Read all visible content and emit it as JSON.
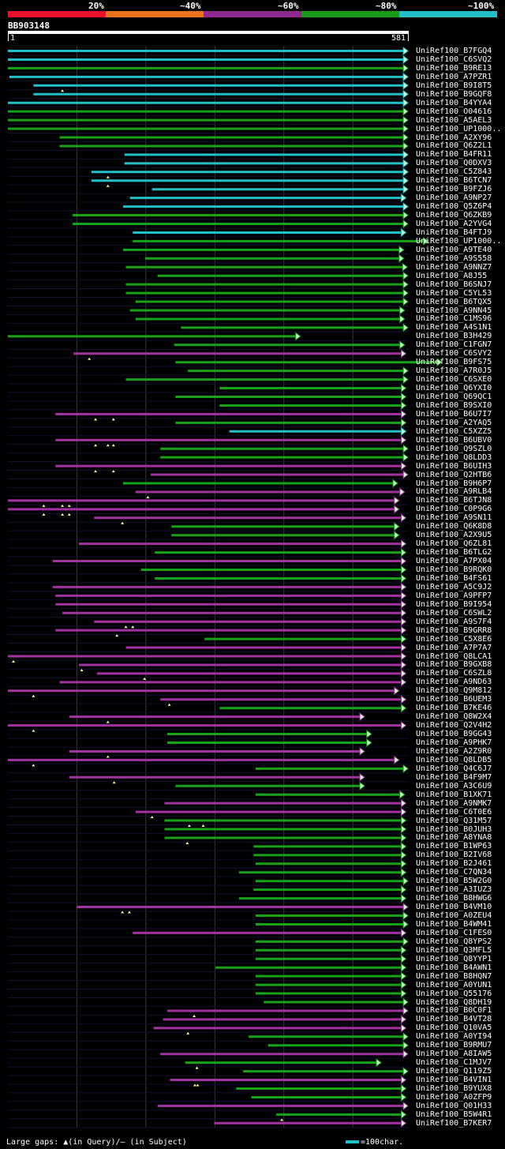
{
  "legend": {
    "segments": [
      {
        "color": "#e8102e"
      },
      {
        "color": "#e9721c"
      },
      {
        "color": "#8e2a8e"
      },
      {
        "color": "#199b19"
      },
      {
        "color": "#23bfc8"
      }
    ],
    "labels": [
      "20%",
      "~40%",
      "~60%",
      "~80%",
      "~100%"
    ]
  },
  "query": {
    "id": "BB903148",
    "start": "1",
    "end": "581",
    "length": 581
  },
  "colors": {
    "cyan": "#23bfc8",
    "green": "#17a317",
    "purple": "#a232a2",
    "grid": "#3a3a3a",
    "head_fill": "#c9ffc9",
    "mark": "#ffff9e"
  },
  "footer": {
    "left": "Large gaps: ▲(in Query)/– (in Subject)",
    "right": "=100char."
  },
  "hits": [
    {
      "name": "UniRef100_B7FGQ4",
      "c": "c",
      "s": 1,
      "e": 581,
      "m": []
    },
    {
      "name": "UniRef100_C6SVQ2",
      "c": "c",
      "s": 1,
      "e": 581,
      "m": []
    },
    {
      "name": "UniRef100_B9RE13",
      "c": "g",
      "s": 1,
      "e": 581,
      "m": []
    },
    {
      "name": "UniRef100_A7PZR1",
      "c": "c",
      "s": 3,
      "e": 581,
      "m": []
    },
    {
      "name": "UniRef100_B9I8T5",
      "c": "c",
      "s": 38,
      "e": 581,
      "m": [
        80
      ]
    },
    {
      "name": "UniRef100_B9GQF8",
      "c": "c",
      "s": 38,
      "e": 581,
      "m": []
    },
    {
      "name": "UniRef100_B4YYA4",
      "c": "c",
      "s": 1,
      "e": 581,
      "m": []
    },
    {
      "name": "UniRef100_O04616",
      "c": "g",
      "s": 1,
      "e": 581,
      "m": []
    },
    {
      "name": "UniRef100_A5AEL3",
      "c": "g",
      "s": 1,
      "e": 581,
      "m": []
    },
    {
      "name": "UniRef100_UP1000..",
      "c": "g",
      "s": 1,
      "e": 581,
      "m": []
    },
    {
      "name": "UniRef100_A2XY96",
      "c": "g",
      "s": 76,
      "e": 581,
      "m": []
    },
    {
      "name": "UniRef100_Q6Z2L1",
      "c": "g",
      "s": 76,
      "e": 581,
      "m": []
    },
    {
      "name": "UniRef100_B4FR11",
      "c": "c",
      "s": 170,
      "e": 581,
      "m": []
    },
    {
      "name": "UniRef100_Q0DXV3",
      "c": "c",
      "s": 170,
      "e": 581,
      "m": []
    },
    {
      "name": "UniRef100_C5Z843",
      "c": "c",
      "s": 122,
      "e": 581,
      "m": [
        146
      ]
    },
    {
      "name": "UniRef100_B6TCN7",
      "c": "c",
      "s": 122,
      "e": 581,
      "m": [
        146
      ]
    },
    {
      "name": "UniRef100_B9FZJ6",
      "c": "c",
      "s": 210,
      "e": 581,
      "m": []
    },
    {
      "name": "UniRef100_A9NP27",
      "c": "c",
      "s": 178,
      "e": 578,
      "m": []
    },
    {
      "name": "UniRef100_Q5Z6P4",
      "c": "c",
      "s": 168,
      "e": 581,
      "m": []
    },
    {
      "name": "UniRef100_Q6ZKB9",
      "c": "g",
      "s": 95,
      "e": 581,
      "m": []
    },
    {
      "name": "UniRef100_A2YVG4",
      "c": "g",
      "s": 95,
      "e": 581,
      "m": []
    },
    {
      "name": "UniRef100_B4FTJ9",
      "c": "c",
      "s": 182,
      "e": 578,
      "m": []
    },
    {
      "name": "UniRef100_UP1000..",
      "c": "g",
      "s": 182,
      "e": 610,
      "m": []
    },
    {
      "name": "UniRef100_A9TE40",
      "c": "g",
      "s": 168,
      "e": 575,
      "m": []
    },
    {
      "name": "UniRef100_A9S558",
      "c": "g",
      "s": 200,
      "e": 575,
      "m": []
    },
    {
      "name": "UniRef100_A9NNZ7",
      "c": "g",
      "s": 172,
      "e": 580,
      "m": []
    },
    {
      "name": "UniRef100_A8J55",
      "c": "g",
      "s": 218,
      "e": 581,
      "m": []
    },
    {
      "name": "UniRef100_B6SNJ7",
      "c": "g",
      "s": 172,
      "e": 581,
      "m": []
    },
    {
      "name": "UniRef100_C5YL53",
      "c": "g",
      "s": 172,
      "e": 581,
      "m": []
    },
    {
      "name": "UniRef100_B6TQX5",
      "c": "g",
      "s": 186,
      "e": 581,
      "m": []
    },
    {
      "name": "UniRef100_A9NN45",
      "c": "g",
      "s": 178,
      "e": 576,
      "m": []
    },
    {
      "name": "UniRef100_C1MS96",
      "c": "g",
      "s": 186,
      "e": 576,
      "m": []
    },
    {
      "name": "UniRef100_A4S1N1",
      "c": "g",
      "s": 252,
      "e": 581,
      "m": []
    },
    {
      "name": "UniRef100_B3H429",
      "c": "g",
      "s": 1,
      "e": 425,
      "m": []
    },
    {
      "name": "UniRef100_C1FGN7",
      "c": "g",
      "s": 242,
      "e": 576,
      "m": []
    },
    {
      "name": "UniRef100_C6SVY2",
      "c": "p",
      "s": 96,
      "e": 578,
      "m": [
        119
      ]
    },
    {
      "name": "UniRef100_B9FS75",
      "c": "g",
      "s": 244,
      "e": 630,
      "m": []
    },
    {
      "name": "UniRef100_A7R0J5",
      "c": "g",
      "s": 262,
      "e": 581,
      "m": []
    },
    {
      "name": "UniRef100_C6SXE0",
      "c": "g",
      "s": 172,
      "e": 581,
      "m": []
    },
    {
      "name": "UniRef100_Q6YXI0",
      "c": "g",
      "s": 308,
      "e": 578,
      "m": []
    },
    {
      "name": "UniRef100_Q69QC1",
      "c": "g",
      "s": 244,
      "e": 578,
      "m": []
    },
    {
      "name": "UniRef100_B9SXI0",
      "c": "g",
      "s": 308,
      "e": 578,
      "m": []
    },
    {
      "name": "UniRef100_B6U7I7",
      "c": "p",
      "s": 70,
      "e": 578,
      "m": [
        128,
        154
      ]
    },
    {
      "name": "UniRef100_A2YAQ5",
      "c": "g",
      "s": 244,
      "e": 578,
      "m": []
    },
    {
      "name": "UniRef100_C5XZZ5",
      "c": "c",
      "s": 322,
      "e": 578,
      "m": []
    },
    {
      "name": "UniRef100_B6UBV0",
      "c": "p",
      "s": 70,
      "e": 578,
      "m": [
        128,
        146,
        154
      ]
    },
    {
      "name": "UniRef100_Q9SZL0",
      "c": "g",
      "s": 222,
      "e": 581,
      "m": []
    },
    {
      "name": "UniRef100_Q8LDD3",
      "c": "g",
      "s": 222,
      "e": 581,
      "m": []
    },
    {
      "name": "UniRef100_B6UIH3",
      "c": "p",
      "s": 70,
      "e": 578,
      "m": [
        128,
        154
      ]
    },
    {
      "name": "UniRef100_Q2HTB6",
      "c": "p",
      "s": 208,
      "e": 581,
      "m": []
    },
    {
      "name": "UniRef100_B9H6P7",
      "c": "g",
      "s": 168,
      "e": 566,
      "m": []
    },
    {
      "name": "UniRef100_A9RLB4",
      "c": "p",
      "s": 186,
      "e": 576,
      "m": [
        204
      ]
    },
    {
      "name": "UniRef100_B6TJN8",
      "c": "p",
      "s": 1,
      "e": 568,
      "m": [
        53,
        80,
        90
      ]
    },
    {
      "name": "UniRef100_C0P9G6",
      "c": "p",
      "s": 1,
      "e": 568,
      "m": [
        53,
        80,
        90
      ]
    },
    {
      "name": "UniRef100_A9SN11",
      "c": "p",
      "s": 126,
      "e": 578,
      "m": [
        167
      ]
    },
    {
      "name": "UniRef100_Q6K8D8",
      "c": "g",
      "s": 238,
      "e": 568,
      "m": []
    },
    {
      "name": "UniRef100_A2X9U5",
      "c": "g",
      "s": 238,
      "e": 568,
      "m": []
    },
    {
      "name": "UniRef100_Q6ZL81",
      "c": "p",
      "s": 104,
      "e": 578,
      "m": []
    },
    {
      "name": "UniRef100_B6TLG2",
      "c": "g",
      "s": 214,
      "e": 578,
      "m": []
    },
    {
      "name": "UniRef100_A7PX04",
      "c": "p",
      "s": 66,
      "e": 578,
      "m": []
    },
    {
      "name": "UniRef100_B9RQK0",
      "c": "g",
      "s": 194,
      "e": 578,
      "m": []
    },
    {
      "name": "UniRef100_B4FS61",
      "c": "g",
      "s": 214,
      "e": 578,
      "m": []
    },
    {
      "name": "UniRef100_A5C9J2",
      "c": "p",
      "s": 66,
      "e": 578,
      "m": []
    },
    {
      "name": "UniRef100_A9PFP7",
      "c": "p",
      "s": 70,
      "e": 578,
      "m": []
    },
    {
      "name": "UniRef100_B9I954",
      "c": "p",
      "s": 70,
      "e": 578,
      "m": []
    },
    {
      "name": "UniRef100_C6SWL2",
      "c": "p",
      "s": 80,
      "e": 578,
      "m": []
    },
    {
      "name": "UniRef100_A9S7F4",
      "c": "p",
      "s": 126,
      "e": 578,
      "m": [
        172,
        182
      ]
    },
    {
      "name": "UniRef100_B9GRR8",
      "c": "p",
      "s": 70,
      "e": 578,
      "m": [
        159
      ]
    },
    {
      "name": "UniRef100_C5X8E6",
      "c": "g",
      "s": 286,
      "e": 578,
      "m": []
    },
    {
      "name": "UniRef100_A7P7A7",
      "c": "p",
      "s": 172,
      "e": 578,
      "m": []
    },
    {
      "name": "UniRef100_Q8LCA1",
      "c": "p",
      "s": 1,
      "e": 578,
      "m": [
        9
      ]
    },
    {
      "name": "UniRef100_B9GXB8",
      "c": "p",
      "s": 104,
      "e": 578,
      "m": [
        108
      ]
    },
    {
      "name": "UniRef100_C6SZL8",
      "c": "p",
      "s": 130,
      "e": 578,
      "m": [
        199
      ]
    },
    {
      "name": "UniRef100_A9ND63",
      "c": "p",
      "s": 76,
      "e": 578,
      "m": []
    },
    {
      "name": "UniRef100_Q9M812",
      "c": "p",
      "s": 1,
      "e": 568,
      "m": [
        38
      ]
    },
    {
      "name": "UniRef100_B6UEM3",
      "c": "p",
      "s": 222,
      "e": 578,
      "m": [
        235
      ]
    },
    {
      "name": "UniRef100_B7KE46",
      "c": "g",
      "s": 308,
      "e": 578,
      "m": []
    },
    {
      "name": "UniRef100_Q8W2X4",
      "c": "p",
      "s": 90,
      "e": 518,
      "m": [
        146
      ]
    },
    {
      "name": "UniRef100_Q2V4H2",
      "c": "p",
      "s": 1,
      "e": 578,
      "m": [
        38
      ]
    },
    {
      "name": "UniRef100_B9GG43",
      "c": "g",
      "s": 232,
      "e": 528,
      "m": []
    },
    {
      "name": "UniRef100_A9PHK7",
      "c": "g",
      "s": 232,
      "e": 528,
      "m": []
    },
    {
      "name": "UniRef100_A2Z9R0",
      "c": "p",
      "s": 90,
      "e": 518,
      "m": [
        146
      ]
    },
    {
      "name": "UniRef100_Q8LDB5",
      "c": "p",
      "s": 1,
      "e": 568,
      "m": [
        38
      ]
    },
    {
      "name": "UniRef100_Q4C6J7",
      "c": "g",
      "s": 360,
      "e": 581,
      "m": []
    },
    {
      "name": "UniRef100_B4F9M7",
      "c": "p",
      "s": 90,
      "e": 518,
      "m": [
        155
      ]
    },
    {
      "name": "UniRef100_A3C6U9",
      "c": "g",
      "s": 244,
      "e": 518,
      "m": []
    },
    {
      "name": "UniRef100_B1XK71",
      "c": "g",
      "s": 360,
      "e": 576,
      "m": []
    },
    {
      "name": "UniRef100_A9NMK7",
      "c": "p",
      "s": 228,
      "e": 578,
      "m": []
    },
    {
      "name": "UniRef100_C6T0E6",
      "c": "p",
      "s": 186,
      "e": 578,
      "m": [
        210
      ]
    },
    {
      "name": "UniRef100_Q31M57",
      "c": "g",
      "s": 228,
      "e": 578,
      "m": [
        264,
        284
      ]
    },
    {
      "name": "UniRef100_B0JUH3",
      "c": "g",
      "s": 228,
      "e": 578,
      "m": []
    },
    {
      "name": "UniRef100_A8YNA8",
      "c": "g",
      "s": 228,
      "e": 578,
      "m": [
        261
      ]
    },
    {
      "name": "UniRef100_B1WP63",
      "c": "g",
      "s": 357,
      "e": 578,
      "m": []
    },
    {
      "name": "UniRef100_B2IV68",
      "c": "g",
      "s": 357,
      "e": 578,
      "m": []
    },
    {
      "name": "UniRef100_B2J461",
      "c": "g",
      "s": 360,
      "e": 578,
      "m": []
    },
    {
      "name": "UniRef100_C7QN34",
      "c": "g",
      "s": 336,
      "e": 578,
      "m": []
    },
    {
      "name": "UniRef100_B5W2G0",
      "c": "g",
      "s": 360,
      "e": 581,
      "m": []
    },
    {
      "name": "UniRef100_A3IUZ3",
      "c": "g",
      "s": 357,
      "e": 578,
      "m": []
    },
    {
      "name": "UniRef100_B8HWG6",
      "c": "g",
      "s": 336,
      "e": 578,
      "m": []
    },
    {
      "name": "UniRef100_B4VM10",
      "c": "p",
      "s": 101,
      "e": 581,
      "m": [
        167,
        177
      ]
    },
    {
      "name": "UniRef100_A0ZEU4",
      "c": "g",
      "s": 360,
      "e": 581,
      "m": []
    },
    {
      "name": "UniRef100_B4WM41",
      "c": "g",
      "s": 360,
      "e": 581,
      "m": []
    },
    {
      "name": "UniRef100_C1FES0",
      "c": "p",
      "s": 182,
      "e": 578,
      "m": []
    },
    {
      "name": "UniRef100_Q8YPS2",
      "c": "g",
      "s": 360,
      "e": 581,
      "m": []
    },
    {
      "name": "UniRef100_Q3MFL5",
      "c": "g",
      "s": 360,
      "e": 578,
      "m": []
    },
    {
      "name": "UniRef100_Q8YYP1",
      "c": "g",
      "s": 360,
      "e": 578,
      "m": []
    },
    {
      "name": "UniRef100_B4AWN1",
      "c": "g",
      "s": 302,
      "e": 578,
      "m": []
    },
    {
      "name": "UniRef100_B8HQN7",
      "c": "g",
      "s": 360,
      "e": 578,
      "m": []
    },
    {
      "name": "UniRef100_A0YUN1",
      "c": "g",
      "s": 360,
      "e": 578,
      "m": []
    },
    {
      "name": "UniRef100_Q55176",
      "c": "g",
      "s": 360,
      "e": 578,
      "m": []
    },
    {
      "name": "UniRef100_Q8DH19",
      "c": "g",
      "s": 372,
      "e": 581,
      "m": []
    },
    {
      "name": "UniRef100_B0C0F1",
      "c": "p",
      "s": 232,
      "e": 581,
      "m": [
        271
      ]
    },
    {
      "name": "UniRef100_B4VT28",
      "c": "p",
      "s": 226,
      "e": 578,
      "m": []
    },
    {
      "name": "UniRef100_Q10VA5",
      "c": "p",
      "s": 212,
      "e": 578,
      "m": [
        262
      ]
    },
    {
      "name": "UniRef100_A0YI94",
      "c": "g",
      "s": 350,
      "e": 581,
      "m": []
    },
    {
      "name": "UniRef100_B9RMU7",
      "c": "g",
      "s": 378,
      "e": 581,
      "m": []
    },
    {
      "name": "UniRef100_A8IAW5",
      "c": "p",
      "s": 222,
      "e": 581,
      "m": []
    },
    {
      "name": "UniRef100_C1MJV7",
      "c": "g",
      "s": 258,
      "e": 542,
      "m": [
        275
      ]
    },
    {
      "name": "UniRef100_Q119Z5",
      "c": "g",
      "s": 342,
      "e": 581,
      "m": []
    },
    {
      "name": "UniRef100_B4VIN1",
      "c": "p",
      "s": 236,
      "e": 578,
      "m": [
        272,
        276
      ]
    },
    {
      "name": "UniRef100_B9YUX8",
      "c": "g",
      "s": 332,
      "e": 578,
      "m": []
    },
    {
      "name": "UniRef100_A0ZFP9",
      "c": "g",
      "s": 354,
      "e": 578,
      "m": []
    },
    {
      "name": "UniRef100_Q01H33",
      "c": "p",
      "s": 218,
      "e": 581,
      "m": []
    },
    {
      "name": "UniRef100_B5W4R1",
      "c": "g",
      "s": 390,
      "e": 578,
      "m": [
        398
      ]
    },
    {
      "name": "UniRef100_B7KER7",
      "c": "p",
      "s": 300,
      "e": 578,
      "m": []
    }
  ]
}
